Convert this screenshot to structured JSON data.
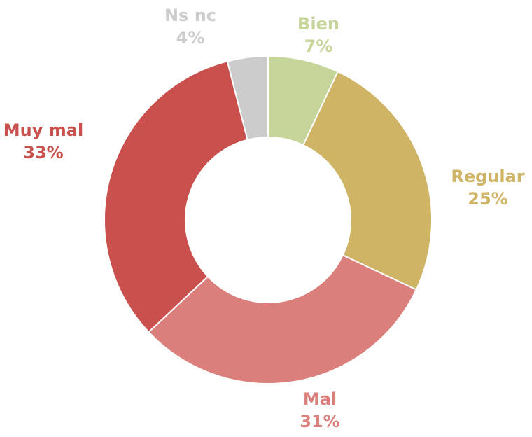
{
  "chart_data": {
    "type": "pie",
    "donut": true,
    "legend": "none",
    "categories": [
      "Bien",
      "Regular",
      "Mal",
      "Muy mal",
      "Ns nc"
    ],
    "values": [
      7,
      25,
      31,
      33,
      4
    ],
    "value_labels": [
      "7%",
      "25%",
      "31%",
      "33%",
      "4%"
    ],
    "colors": [
      "#c6d59a",
      "#cfb466",
      "#da7f7c",
      "#c9504c",
      "#cccccc"
    ]
  }
}
